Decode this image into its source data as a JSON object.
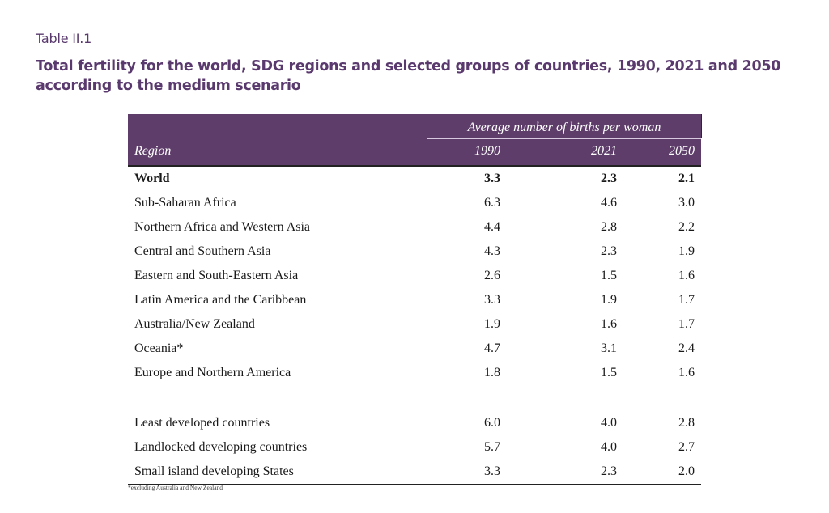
{
  "table_label": "Table II.1",
  "title": "Total fertility for the world, SDG regions and selected groups of countries, 1990, 2021 and 2050 according to the medium scenario",
  "header": {
    "group_label": "Average number of births per woman",
    "region_label": "Region",
    "years": [
      "1990",
      "2021",
      "2050"
    ]
  },
  "rows_main": [
    {
      "name": "World",
      "v": [
        "3.3",
        "2.3",
        "2.1"
      ]
    },
    {
      "name": "Sub-Saharan Africa",
      "v": [
        "6.3",
        "4.6",
        "3.0"
      ]
    },
    {
      "name": "Northern Africa and Western Asia",
      "v": [
        "4.4",
        "2.8",
        "2.2"
      ]
    },
    {
      "name": "Central and Southern Asia",
      "v": [
        "4.3",
        "2.3",
        "1.9"
      ]
    },
    {
      "name": "Eastern and South-Eastern Asia",
      "v": [
        "2.6",
        "1.5",
        "1.6"
      ]
    },
    {
      "name": "Latin America and the Caribbean",
      "v": [
        "3.3",
        "1.9",
        "1.7"
      ]
    },
    {
      "name": "Australia/New Zealand",
      "v": [
        "1.9",
        "1.6",
        "1.7"
      ]
    },
    {
      "name": "Oceania*",
      "v": [
        "4.7",
        "3.1",
        "2.4"
      ]
    },
    {
      "name": "Europe and Northern America",
      "v": [
        "1.8",
        "1.5",
        "1.6"
      ]
    }
  ],
  "rows_groups": [
    {
      "name": "Least developed countries",
      "v": [
        "6.0",
        "4.0",
        "2.8"
      ]
    },
    {
      "name": "Landlocked developing countries",
      "v": [
        "5.7",
        "4.0",
        "2.7"
      ]
    },
    {
      "name": "Small island developing States",
      "v": [
        "3.3",
        "2.3",
        "2.0"
      ]
    }
  ],
  "footnote": "*excluding Australia and New Zealand",
  "colors": {
    "header_bg": "#5e3d6a",
    "title": "#5a3a6e"
  }
}
